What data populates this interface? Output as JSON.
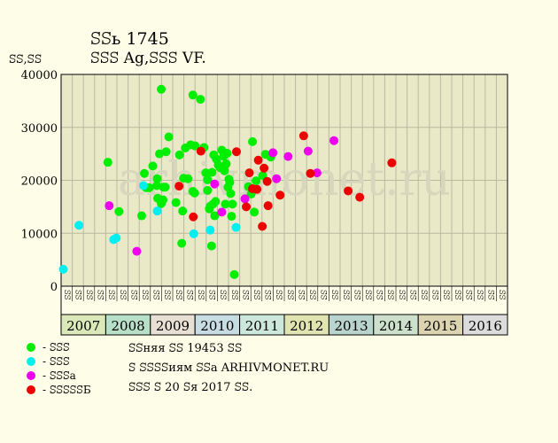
{
  "header": {
    "title": "ꕶꕶь 1745",
    "subtitle": "ꕶꕶꕶ Ag,ꕶꕶꕶ VF.",
    "ylabel": "ꕶꕶ,ꕶꕶ"
  },
  "watermark": "arhivmonet.ru",
  "legend": [
    {
      "label": "- ꕶꕶꕶ",
      "color": "#00ee00"
    },
    {
      "label": "- ꕶꕶꕶ",
      "color": "#00f0f0"
    },
    {
      "label": "- ꕶꕶꕶa",
      "color": "#ee00ee"
    },
    {
      "label": "- ꕶꕶꕶꕶꕶБ",
      "color": "#ee0000"
    }
  ],
  "info": {
    "line1": "ꕶꕶняя ꕶꕶ 19453 ꕶꕶ",
    "line2": "ꕶ ꕶꕶꕶꕶиям ꕶꕶa ARHIVMONET.RU",
    "line3": "ꕶꕶꕶ ꕶ 20 ꕶя 2017 ꕶꕶ."
  },
  "chart_data": {
    "type": "scatter",
    "ylim": [
      0,
      40000
    ],
    "yticks": [
      0,
      10000,
      20000,
      30000,
      40000
    ],
    "xlim": [
      2006.97,
      2017.0
    ],
    "quarter_labels": [
      "ꕶꕶ",
      "ꕶꕶ",
      "ꕶꕶ",
      "ꕶꕶ"
    ],
    "years": [
      "2007",
      "2008",
      "2009",
      "2010",
      "2011",
      "2012",
      "2013",
      "2014",
      "2015",
      "2016"
    ],
    "year_colors": [
      "#dbe8b8",
      "#b8e0c8",
      "#e8e0d4",
      "#c8dce4",
      "#cce8dc",
      "#e0e4b0",
      "#b8d4cc",
      "#cce0cc",
      "#dcd4b0",
      "#dcdcdc"
    ],
    "grid": true,
    "series": [
      {
        "color": "#00ee00",
        "points": [
          [
            2008.02,
            23400
          ],
          [
            2008.27,
            14100
          ],
          [
            2008.78,
            13300
          ],
          [
            2008.84,
            21300
          ],
          [
            2008.88,
            18600
          ],
          [
            2008.95,
            18600
          ],
          [
            2009.03,
            22700
          ],
          [
            2009.12,
            19000
          ],
          [
            2009.13,
            20300
          ],
          [
            2009.14,
            16600
          ],
          [
            2009.22,
            37200
          ],
          [
            2009.18,
            25000
          ],
          [
            2009.22,
            15600
          ],
          [
            2009.26,
            16300
          ],
          [
            2009.27,
            18700
          ],
          [
            2009.31,
            18700
          ],
          [
            2009.33,
            25400
          ],
          [
            2009.39,
            28200
          ],
          [
            2009.55,
            15800
          ],
          [
            2009.63,
            24800
          ],
          [
            2009.68,
            8100
          ],
          [
            2009.7,
            14200
          ],
          [
            2009.72,
            20400
          ],
          [
            2009.76,
            26100
          ],
          [
            2009.82,
            20300
          ],
          [
            2009.88,
            26700
          ],
          [
            2009.93,
            36100
          ],
          [
            2009.93,
            17900
          ],
          [
            2009.98,
            26500
          ],
          [
            2009.97,
            17600
          ],
          [
            2010.1,
            35300
          ],
          [
            2010.18,
            26200
          ],
          [
            2010.22,
            21400
          ],
          [
            2010.26,
            18100
          ],
          [
            2010.26,
            20100
          ],
          [
            2010.3,
            14600
          ],
          [
            2010.32,
            15100
          ],
          [
            2010.35,
            7600
          ],
          [
            2010.36,
            21500
          ],
          [
            2010.38,
            15500
          ],
          [
            2010.4,
            24800
          ],
          [
            2010.42,
            13300
          ],
          [
            2010.44,
            16000
          ],
          [
            2010.46,
            24000
          ],
          [
            2010.5,
            22900
          ],
          [
            2010.54,
            22400
          ],
          [
            2010.58,
            25700
          ],
          [
            2010.62,
            24500
          ],
          [
            2010.64,
            21800
          ],
          [
            2010.66,
            15500
          ],
          [
            2010.68,
            23100
          ],
          [
            2010.7,
            25100
          ],
          [
            2010.72,
            18700
          ],
          [
            2010.74,
            20200
          ],
          [
            2010.76,
            19600
          ],
          [
            2010.78,
            17500
          ],
          [
            2010.8,
            13200
          ],
          [
            2010.82,
            15500
          ],
          [
            2010.86,
            2200
          ],
          [
            2011.18,
            18800
          ],
          [
            2011.24,
            17400
          ],
          [
            2011.27,
            27300
          ],
          [
            2011.31,
            14000
          ],
          [
            2011.35,
            19900
          ],
          [
            2011.5,
            20900
          ],
          [
            2011.56,
            24900
          ],
          [
            2011.68,
            24400
          ]
        ]
      },
      {
        "color": "#00f0f0",
        "points": [
          [
            2007.02,
            3200
          ],
          [
            2007.37,
            11500
          ],
          [
            2008.15,
            8800
          ],
          [
            2008.21,
            9100
          ],
          [
            2008.82,
            19000
          ],
          [
            2009.13,
            14200
          ],
          [
            2009.95,
            9900
          ],
          [
            2010.32,
            10600
          ],
          [
            2010.9,
            11100
          ]
        ]
      },
      {
        "color": "#ee00ee",
        "points": [
          [
            2008.05,
            15200
          ],
          [
            2008.67,
            6600
          ],
          [
            2010.42,
            19300
          ],
          [
            2010.58,
            14000
          ],
          [
            2011.1,
            16500
          ],
          [
            2011.73,
            25200
          ],
          [
            2011.81,
            20300
          ],
          [
            2012.07,
            24500
          ],
          [
            2012.52,
            25500
          ],
          [
            2012.72,
            21400
          ],
          [
            2013.1,
            27500
          ]
        ]
      },
      {
        "color": "#ee0000",
        "points": [
          [
            2009.62,
            18900
          ],
          [
            2009.94,
            13100
          ],
          [
            2010.11,
            25500
          ],
          [
            2010.91,
            25400
          ],
          [
            2011.13,
            15000
          ],
          [
            2011.2,
            21400
          ],
          [
            2011.27,
            18400
          ],
          [
            2011.37,
            18300
          ],
          [
            2011.4,
            23800
          ],
          [
            2011.49,
            11300
          ],
          [
            2011.53,
            22300
          ],
          [
            2011.6,
            19800
          ],
          [
            2011.62,
            15200
          ],
          [
            2011.89,
            17200
          ],
          [
            2012.42,
            28400
          ],
          [
            2012.57,
            21300
          ],
          [
            2013.42,
            18000
          ],
          [
            2013.68,
            16800
          ],
          [
            2014.4,
            23300
          ]
        ]
      }
    ]
  }
}
